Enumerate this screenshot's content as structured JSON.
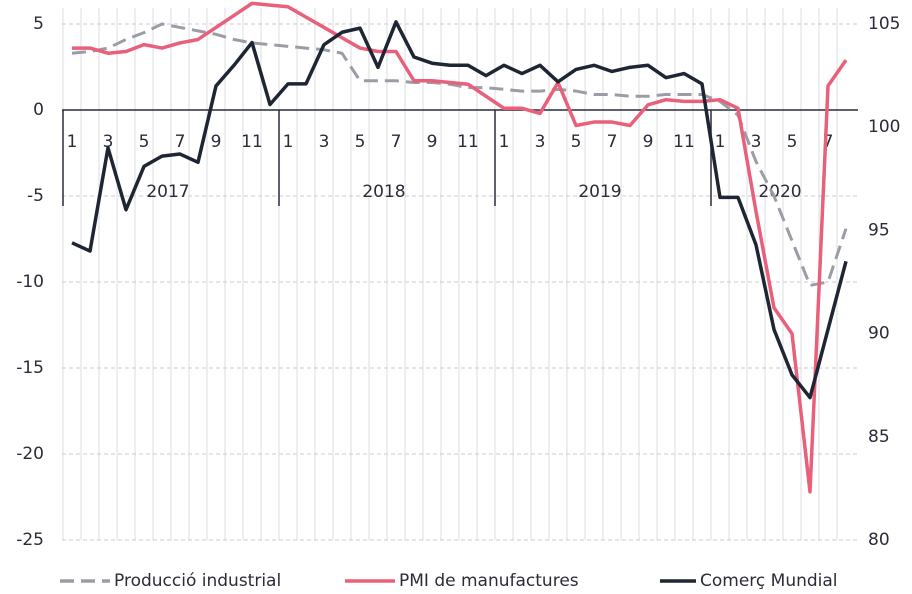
{
  "chart_data": {
    "type": "line",
    "categories": [
      "1",
      null,
      "3",
      null,
      "5",
      null,
      "7",
      null,
      "9",
      null,
      "11",
      null,
      "1",
      null,
      "3",
      null,
      "5",
      null,
      "7",
      null,
      "9",
      null,
      "11",
      null,
      "1",
      null,
      "3",
      null,
      "5",
      null,
      "7",
      null,
      "9",
      null,
      "11",
      null,
      "1",
      null,
      "3",
      null,
      "5",
      null,
      "7",
      null
    ],
    "years": [
      "2017",
      "2018",
      "2019",
      "2020"
    ],
    "ylim": [
      -25,
      5
    ],
    "yticks": [
      5,
      0,
      -5,
      -10,
      -15,
      -20,
      -25
    ],
    "y2lim": [
      80,
      105
    ],
    "y2ticks": [
      105,
      100,
      95,
      90,
      85,
      80
    ],
    "grid": true,
    "series": [
      {
        "name": "Producció industrial",
        "color": "#9a9da6",
        "dashed": true,
        "values": [
          3.3,
          3.4,
          3.6,
          4.1,
          4.5,
          5.0,
          4.8,
          4.6,
          4.4,
          4.1,
          3.9,
          3.8,
          3.7,
          3.6,
          3.5,
          3.3,
          1.7,
          1.7,
          1.7,
          1.6,
          1.6,
          1.5,
          1.3,
          1.3,
          1.2,
          1.1,
          1.1,
          1.2,
          1.1,
          0.9,
          0.9,
          0.8,
          0.8,
          0.9,
          0.9,
          0.9,
          0.5,
          -0.3,
          -3,
          -5,
          -7.6,
          -10.2,
          -10,
          -6.9
        ]
      },
      {
        "name": "PMI de manufactures",
        "color": "#e8607a",
        "values": [
          3.6,
          3.6,
          3.3,
          3.4,
          3.8,
          3.6,
          3.9,
          4.1,
          4.8,
          5.5,
          6.2,
          6.1,
          6.0,
          5.4,
          4.8,
          4.2,
          3.6,
          3.4,
          3.4,
          1.7,
          1.7,
          1.6,
          1.5,
          0.8,
          0.1,
          0.1,
          -0.2,
          1.6,
          -0.9,
          -0.7,
          -0.7,
          -0.9,
          0.3,
          0.6,
          0.5,
          0.5,
          0.6,
          0.1,
          -5.9,
          -11.5,
          -13,
          -22.2,
          1.4,
          2.9
        ]
      },
      {
        "name": "Comerç Mundial",
        "color": "#1e2533",
        "axis": "y2",
        "values": [
          94.4,
          94.0,
          99.0,
          96.0,
          98.1,
          98.6,
          98.7,
          98.3,
          102.0,
          103.0,
          104.1,
          101.1,
          102.1,
          102.1,
          104.0,
          104.6,
          104.8,
          102.9,
          105.1,
          103.4,
          103.1,
          103.0,
          103.0,
          102.5,
          103.0,
          102.6,
          103.0,
          102.2,
          102.8,
          103.0,
          102.7,
          102.9,
          103.0,
          102.4,
          102.6,
          102.1,
          96.6,
          96.6,
          94.3,
          90.2,
          88.0,
          86.9,
          90.2,
          93.5
        ]
      }
    ]
  }
}
